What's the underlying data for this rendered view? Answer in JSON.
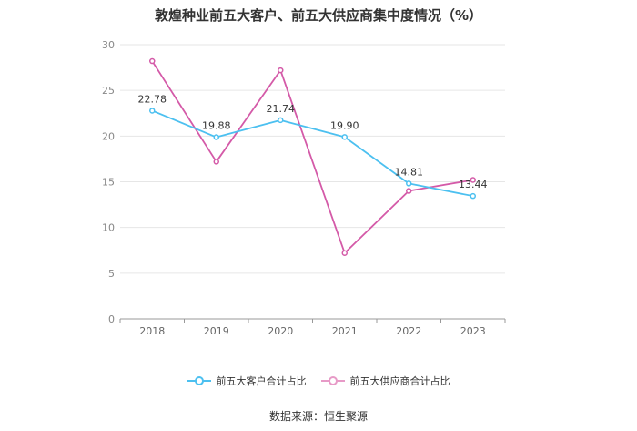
{
  "title": "敦煌种业前五大客户、前五大供应商集中度情况（%）",
  "source": "数据来源：恒生聚源",
  "chart_data": {
    "type": "line",
    "title": "敦煌种业前五大客户、前五大供应商集中度情况（%）",
    "x": [
      "2018",
      "2019",
      "2020",
      "2021",
      "2022",
      "2023"
    ],
    "ylim": [
      0,
      30
    ],
    "yticks": [
      0,
      5,
      10,
      15,
      20,
      25,
      30
    ],
    "grid": true,
    "legend": "bottom",
    "series": [
      {
        "name": "前五大客户合计占比",
        "color": "#4cc0f0",
        "values": [
          22.78,
          19.88,
          21.74,
          19.9,
          14.81,
          13.44
        ],
        "labels": [
          "22.78",
          "19.88",
          "21.74",
          "19.90",
          "14.81",
          "13.44"
        ]
      },
      {
        "name": "前五大供应商合计占比",
        "color": "#d45aa8",
        "values": [
          28.2,
          17.2,
          27.2,
          7.2,
          14.0,
          15.2
        ],
        "labels": []
      }
    ]
  }
}
